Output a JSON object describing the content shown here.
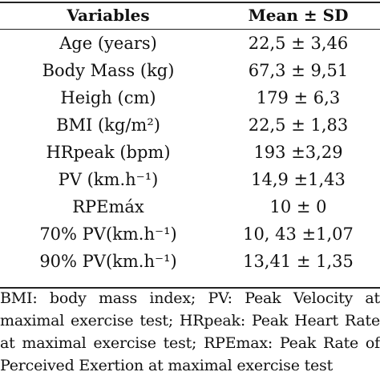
{
  "table": {
    "headers": {
      "variable": "Variables",
      "value": "Mean ± SD"
    },
    "rows": [
      {
        "variable": "Age (years)",
        "value": "22,5 ± 3,46"
      },
      {
        "variable": "Body Mass (kg)",
        "value": "67,3 ± 9,51"
      },
      {
        "variable": "Heigh (cm)",
        "value": "179 ± 6,3"
      },
      {
        "variable": "BMI (kg/m²)",
        "value": "22,5 ± 1,83"
      },
      {
        "variable": "HRpeak (bpm)",
        "value": "193 ±3,29"
      },
      {
        "variable": "PV (km.h⁻¹)",
        "value": "14,9 ±1,43"
      },
      {
        "variable": "RPEmáx",
        "value": "10 ± 0"
      },
      {
        "variable": "70% PV(km.h⁻¹)",
        "value": "10, 43 ±1,07"
      },
      {
        "variable": "90% PV(km.h⁻¹)",
        "value": "13,41 ± 1,35"
      }
    ]
  },
  "footnote": {
    "lines": [
      "BMI: body mass index; PV: Peak Velocity at",
      "maximal exercise test; HRpeak: Peak Heart Rate",
      "at maximal exercise test; RPEmax: Peak Rate of",
      "Perceived Exertion at maximal exercise test"
    ]
  }
}
